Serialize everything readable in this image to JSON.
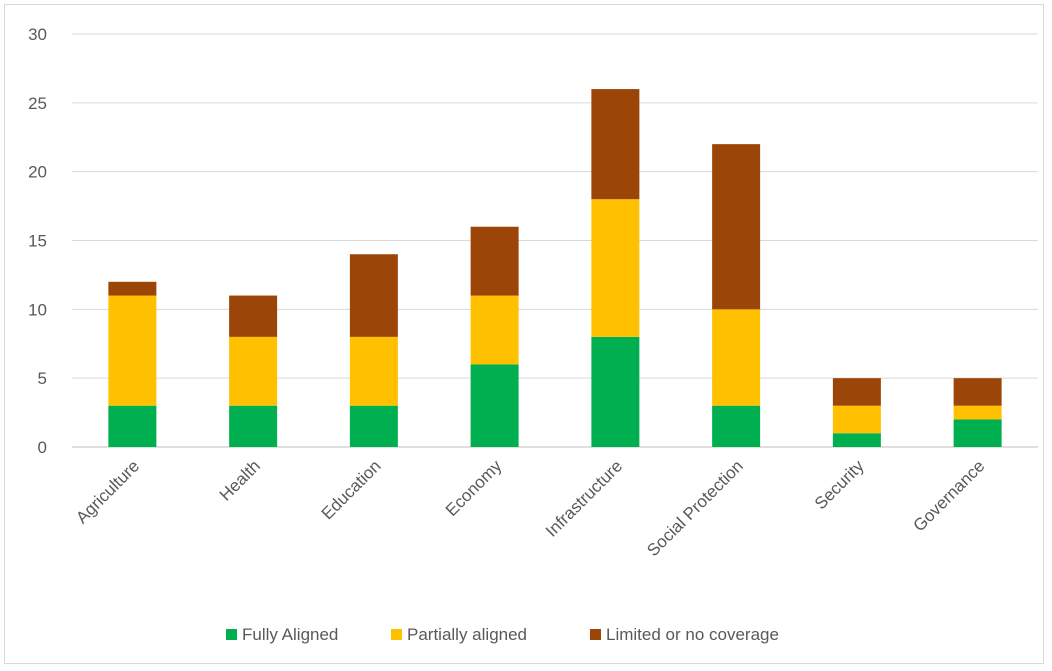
{
  "chart_data": {
    "type": "bar",
    "stacked": true,
    "categories": [
      "Agriculture",
      "Health",
      "Education",
      "Economy",
      "Infrastructure",
      "Social Protection",
      "Security",
      "Governance"
    ],
    "series": [
      {
        "name": "Fully Aligned",
        "color": "#00b050",
        "values": [
          3,
          3,
          3,
          6,
          8,
          3,
          1,
          2
        ]
      },
      {
        "name": "Partially aligned",
        "color": "#ffc000",
        "values": [
          8,
          5,
          5,
          5,
          10,
          7,
          2,
          1
        ]
      },
      {
        "name": "Limited or no coverage",
        "color": "#9c4508",
        "values": [
          1,
          3,
          6,
          5,
          8,
          12,
          2,
          2
        ]
      }
    ],
    "ylim": [
      0,
      30
    ],
    "yticks": [
      0,
      5,
      10,
      15,
      20,
      25,
      30
    ],
    "grid": true,
    "legend_position": "bottom"
  }
}
